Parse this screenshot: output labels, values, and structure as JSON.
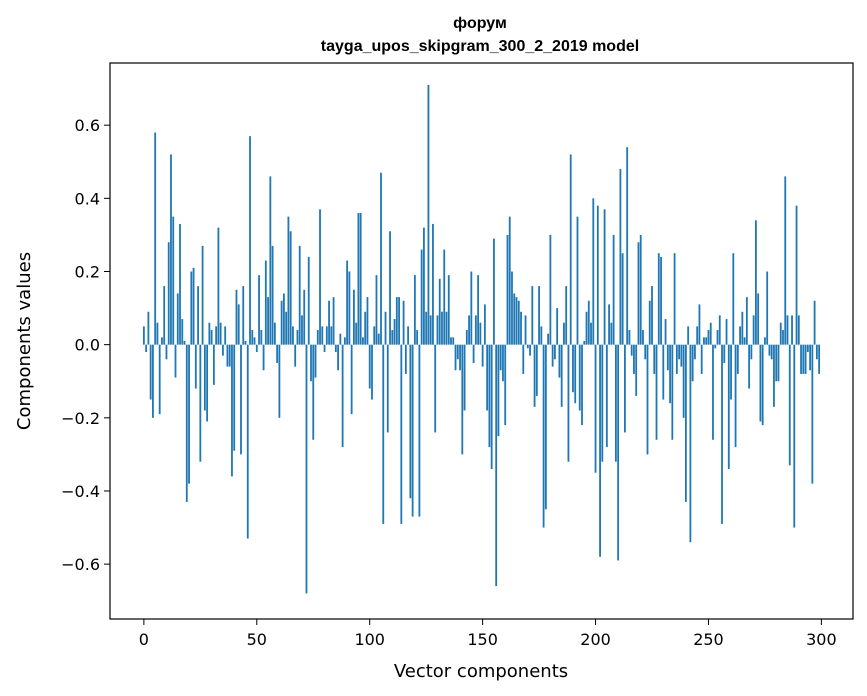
{
  "chart_data": {
    "type": "bar",
    "title": "форум",
    "subtitle": "tayga_upos_skipgram_300_2_2019 model",
    "xlabel": "Vector components",
    "ylabel": "Components values",
    "xlim": [
      -15,
      314
    ],
    "ylim": [
      -0.75,
      0.77
    ],
    "xticks": [
      0,
      50,
      100,
      150,
      200,
      250,
      300
    ],
    "yticks": [
      -0.6,
      -0.4,
      -0.2,
      0.0,
      0.2,
      0.4,
      0.6
    ],
    "xtick_labels": [
      "0",
      "50",
      "100",
      "150",
      "200",
      "250",
      "300"
    ],
    "ytick_labels": [
      "−0.6",
      "−0.4",
      "−0.2",
      "0.0",
      "0.2",
      "0.4",
      "0.6"
    ],
    "grid": false,
    "bar_color": "#1f77b4",
    "x": [
      0,
      1,
      2,
      3,
      4,
      5,
      6,
      7,
      8,
      9,
      10,
      11,
      12,
      13,
      14,
      15,
      16,
      17,
      18,
      19,
      20,
      21,
      22,
      23,
      24,
      25,
      26,
      27,
      28,
      29,
      30,
      31,
      32,
      33,
      34,
      35,
      36,
      37,
      38,
      39,
      40,
      41,
      42,
      43,
      44,
      45,
      46,
      47,
      48,
      49,
      50,
      51,
      52,
      53,
      54,
      55,
      56,
      57,
      58,
      59,
      60,
      61,
      62,
      63,
      64,
      65,
      66,
      67,
      68,
      69,
      70,
      71,
      72,
      73,
      74,
      75,
      76,
      77,
      78,
      79,
      80,
      81,
      82,
      83,
      84,
      85,
      86,
      87,
      88,
      89,
      90,
      91,
      92,
      93,
      94,
      95,
      96,
      97,
      98,
      99,
      100,
      101,
      102,
      103,
      104,
      105,
      106,
      107,
      108,
      109,
      110,
      111,
      112,
      113,
      114,
      115,
      116,
      117,
      118,
      119,
      120,
      121,
      122,
      123,
      124,
      125,
      126,
      127,
      128,
      129,
      130,
      131,
      132,
      133,
      134,
      135,
      136,
      137,
      138,
      139,
      140,
      141,
      142,
      143,
      144,
      145,
      146,
      147,
      148,
      149,
      150,
      151,
      152,
      153,
      154,
      155,
      156,
      157,
      158,
      159,
      160,
      161,
      162,
      163,
      164,
      165,
      166,
      167,
      168,
      169,
      170,
      171,
      172,
      173,
      174,
      175,
      176,
      177,
      178,
      179,
      180,
      181,
      182,
      183,
      184,
      185,
      186,
      187,
      188,
      189,
      190,
      191,
      192,
      193,
      194,
      195,
      196,
      197,
      198,
      199,
      200,
      201,
      202,
      203,
      204,
      205,
      206,
      207,
      208,
      209,
      210,
      211,
      212,
      213,
      214,
      215,
      216,
      217,
      218,
      219,
      220,
      221,
      222,
      223,
      224,
      225,
      226,
      227,
      228,
      229,
      230,
      231,
      232,
      233,
      234,
      235,
      236,
      237,
      238,
      239,
      240,
      241,
      242,
      243,
      244,
      245,
      246,
      247,
      248,
      249,
      250,
      251,
      252,
      253,
      254,
      255,
      256,
      257,
      258,
      259,
      260,
      261,
      262,
      263,
      264,
      265,
      266,
      267,
      268,
      269,
      270,
      271,
      272,
      273,
      274,
      275,
      276,
      277,
      278,
      279,
      280,
      281,
      282,
      283,
      284,
      285,
      286,
      287,
      288,
      289,
      290,
      291,
      292,
      293,
      294,
      295,
      296,
      297,
      298,
      299
    ],
    "values": [
      0.05,
      -0.02,
      0.09,
      -0.15,
      -0.2,
      0.58,
      0.06,
      -0.19,
      0.02,
      0.16,
      -0.04,
      0.28,
      0.52,
      0.35,
      -0.09,
      0.14,
      0.33,
      0.07,
      0.01,
      -0.43,
      -0.38,
      0.2,
      0.21,
      -0.12,
      0.16,
      -0.32,
      0.27,
      -0.18,
      -0.21,
      0.06,
      0.04,
      -0.11,
      0.05,
      0.32,
      0.06,
      -0.03,
      0.05,
      -0.06,
      -0.06,
      -0.36,
      -0.29,
      0.15,
      0.11,
      -0.3,
      0.16,
      0.01,
      -0.53,
      0.57,
      0.04,
      0.02,
      -0.02,
      0.19,
      0.04,
      -0.07,
      0.23,
      0.13,
      0.46,
      0.27,
      0.06,
      -0.05,
      -0.2,
      0.12,
      0.14,
      0.09,
      0.35,
      0.31,
      0.05,
      -0.06,
      0.04,
      0.27,
      0.08,
      0.15,
      -0.68,
      0.24,
      -0.1,
      -0.26,
      -0.09,
      0.04,
      0.37,
      0.05,
      -0.02,
      0.05,
      0.12,
      0.05,
      0.13,
      -0.02,
      -0.07,
      0.03,
      -0.28,
      0.02,
      0.23,
      0.2,
      -0.19,
      0.15,
      0.06,
      0.36,
      0.36,
      0.02,
      0.09,
      0.13,
      -0.12,
      -0.15,
      0.05,
      0.19,
      0.03,
      0.47,
      -0.49,
      0.09,
      -0.24,
      0.31,
      0.04,
      0.07,
      0.13,
      0.13,
      -0.49,
      0.12,
      -0.08,
      0.05,
      -0.42,
      -0.47,
      0.19,
      0.04,
      -0.47,
      0.26,
      0.32,
      0.09,
      0.71,
      0.08,
      0.33,
      -0.24,
      0.08,
      0.18,
      0.09,
      0.26,
      0.09,
      0.19,
      0.02,
      0.02,
      -0.07,
      -0.04,
      -0.07,
      -0.3,
      -0.18,
      0.04,
      0.08,
      0.2,
      -0.05,
      0.08,
      0.19,
      0.06,
      -0.06,
      0.11,
      -0.18,
      -0.28,
      -0.34,
      0.29,
      -0.66,
      -0.25,
      -0.07,
      -0.1,
      -0.22,
      0.3,
      0.35,
      0.2,
      0.14,
      0.13,
      0.12,
      0.09,
      -0.08,
      0.08,
      -0.01,
      -0.03,
      0.16,
      -0.17,
      -0.14,
      0.16,
      0.05,
      -0.5,
      -0.45,
      0.03,
      0.3,
      -0.06,
      -0.04,
      0.1,
      -0.09,
      -0.17,
      0.06,
      0.16,
      -0.32,
      0.52,
      -0.13,
      -0.16,
      0.35,
      -0.18,
      -0.22,
      0.01,
      0.09,
      0.12,
      0.06,
      0.4,
      -0.35,
      0.38,
      -0.58,
      -0.32,
      0.37,
      -0.28,
      0.11,
      0.06,
      0.3,
      -0.32,
      -0.59,
      0.48,
      0.25,
      -0.24,
      0.54,
      0.04,
      -0.03,
      -0.08,
      -0.14,
      0.28,
      0.3,
      0.04,
      -0.04,
      -0.3,
      0.12,
      0.16,
      -0.08,
      -0.26,
      0.25,
      0.24,
      -0.15,
      0.07,
      -0.07,
      -0.16,
      -0.26,
      0.25,
      -0.08,
      -0.04,
      -0.06,
      -0.2,
      -0.43,
      0.05,
      -0.54,
      -0.1,
      -0.04,
      0.05,
      0.11,
      -0.08,
      0.02,
      0.02,
      0.04,
      0.06,
      -0.26,
      -0.01,
      0.04,
      0.08,
      -0.49,
      -0.05,
      0.07,
      -0.34,
      -0.15,
      0.25,
      -0.28,
      -0.08,
      0.05,
      0.09,
      0.02,
      0.13,
      -0.12,
      -0.04,
      0.08,
      0.34,
      0.14,
      -0.21,
      -0.22,
      0.02,
      0.2,
      -0.03,
      -0.04,
      -0.17,
      -0.1,
      -0.1,
      0.06,
      0.04,
      0.46,
      0.08,
      -0.33,
      0.08,
      -0.5,
      0.38,
      0.08,
      -0.08,
      -0.08,
      -0.08,
      -0.02,
      -0.07,
      -0.38,
      0.12,
      -0.04,
      -0.08
    ]
  }
}
